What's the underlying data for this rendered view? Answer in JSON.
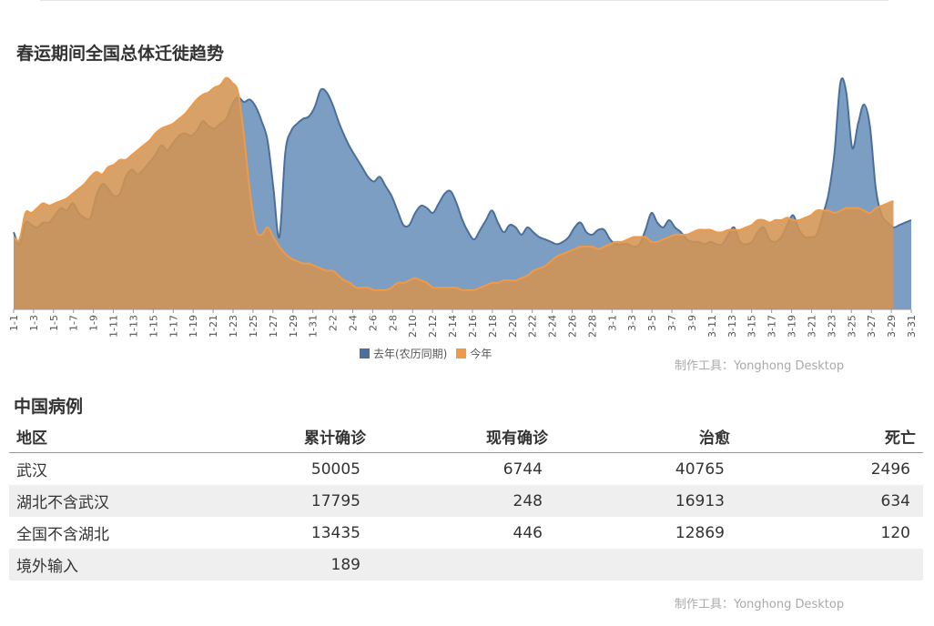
{
  "chart": {
    "title": "春运期间全国总体迁徙趋势",
    "legend": [
      "去年(农历同期)",
      "今年"
    ],
    "credit": "制作工具：Yonghong Desktop"
  },
  "colors": {
    "last_year": "#6f93bd",
    "last_year_line": "#4b6f9c",
    "this_year": "#ee9a48",
    "this_year_area": "#d39452"
  },
  "chart_data": {
    "type": "area",
    "title": "春运期间全国总体迁徙趋势",
    "x_tick_labels": [
      "1-1",
      "1-3",
      "1-5",
      "1-7",
      "1-9",
      "1-11",
      "1-13",
      "1-15",
      "1-17",
      "1-19",
      "1-21",
      "1-23",
      "1-25",
      "1-27",
      "1-29",
      "1-31",
      "2-2",
      "2-4",
      "2-6",
      "2-8",
      "2-10",
      "2-12",
      "2-14",
      "2-16",
      "2-18",
      "2-20",
      "2-22",
      "2-24",
      "2-26",
      "2-28",
      "3-1",
      "3-3",
      "3-5",
      "3-7",
      "3-9",
      "3-11",
      "3-13",
      "3-15",
      "3-17",
      "3-19",
      "3-21",
      "3-23",
      "3-25",
      "3-27",
      "3-29",
      "3-31"
    ],
    "ylim": [
      0,
      100
    ],
    "grid": false,
    "legend_position": "bottom",
    "series": [
      {
        "name": "去年(农历同期)",
        "values": [
          32,
          27,
          36,
          35,
          34,
          36,
          36,
          39,
          42,
          41,
          44,
          40,
          38,
          38,
          47,
          52,
          50,
          47,
          48,
          55,
          58,
          56,
          58,
          61,
          64,
          68,
          66,
          69,
          72,
          73,
          72,
          74,
          78,
          76,
          75,
          77,
          79,
          85,
          88,
          86,
          87,
          84,
          78,
          70,
          50,
          30,
          65,
          74,
          77,
          79,
          80,
          84,
          91,
          90,
          85,
          78,
          72,
          67,
          63,
          59,
          55,
          53,
          55,
          51,
          47,
          41,
          35,
          35,
          40,
          43,
          42,
          40,
          44,
          48,
          49,
          44,
          37,
          32,
          29,
          33,
          37,
          41,
          36,
          32,
          35,
          34,
          31,
          34,
          32,
          30,
          29,
          28,
          27,
          28,
          30,
          34,
          36,
          32,
          31,
          33,
          33,
          29,
          27,
          27,
          27,
          26,
          27,
          33,
          40,
          36,
          34,
          37,
          34,
          32,
          29,
          28,
          28,
          27,
          28,
          27,
          27,
          31,
          34,
          28,
          27,
          28,
          32,
          34,
          29,
          28,
          30,
          35,
          39,
          33,
          30,
          30,
          31,
          39,
          48,
          65,
          94,
          90,
          67,
          77,
          85,
          76,
          50,
          39,
          36,
          34,
          35,
          36,
          37
        ]
      },
      {
        "name": "今年",
        "values": [
          30,
          29,
          40,
          40,
          42,
          44,
          43,
          44,
          45,
          46,
          48,
          50,
          52,
          55,
          57,
          56,
          59,
          60,
          62,
          62,
          64,
          66,
          68,
          70,
          73,
          75,
          76,
          77,
          79,
          81,
          84,
          87,
          89,
          90,
          92,
          93,
          96,
          94,
          90,
          72,
          49,
          33,
          31,
          34,
          30,
          26,
          23,
          21,
          20,
          19,
          19,
          18,
          17,
          16,
          16,
          14,
          12,
          11,
          9,
          9,
          9,
          8,
          8,
          8,
          9,
          11,
          11,
          12,
          13,
          12,
          11,
          9,
          9,
          9,
          9,
          9,
          8,
          8,
          8,
          9,
          10,
          11,
          11,
          12,
          12,
          12,
          13,
          14,
          16,
          17,
          18,
          20,
          22,
          23,
          24,
          25,
          26,
          26,
          26,
          25,
          26,
          27,
          28,
          28,
          29,
          30,
          30,
          30,
          28,
          28,
          29,
          30,
          31,
          31,
          31,
          32,
          33,
          33,
          33,
          32,
          32,
          33,
          33,
          33,
          34,
          35,
          37,
          37,
          36,
          37,
          37,
          38,
          37,
          37,
          38,
          39,
          41,
          41,
          41,
          40,
          41,
          42,
          42,
          42,
          41,
          40,
          42,
          43,
          44,
          45
        ]
      }
    ]
  },
  "table": {
    "section_title": "中国病例",
    "headers": [
      "地区",
      "累计确诊",
      "现有确诊",
      "治愈",
      "死亡"
    ],
    "rows": [
      [
        "武汉",
        "50005",
        "6744",
        "40765",
        "2496"
      ],
      [
        "湖北不含武汉",
        "17795",
        "248",
        "16913",
        "634"
      ],
      [
        "全国不含湖北",
        "13435",
        "446",
        "12869",
        "120"
      ],
      [
        "境外输入",
        "189",
        "",
        "",
        ""
      ]
    ],
    "credit": "制作工具：Yonghong Desktop"
  }
}
